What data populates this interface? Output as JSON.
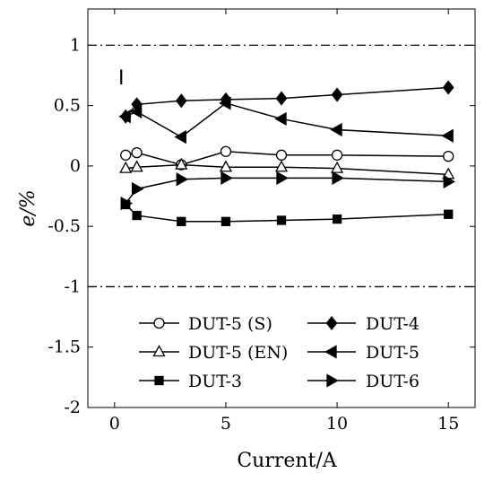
{
  "chart_data": {
    "type": "line",
    "xlabel": "Current/A",
    "ylabel": "e/%",
    "xlim": [
      -1.2,
      16.2
    ],
    "ylim": [
      -2,
      1.3
    ],
    "x_ticks": [
      "0",
      "5",
      "10",
      "15"
    ],
    "x_tick_values": [
      0,
      5,
      10,
      15
    ],
    "y_ticks": [
      "1",
      "0.5",
      "0",
      "-0.5",
      "-1",
      "-1.5",
      "-2"
    ],
    "y_tick_values": [
      1,
      0.5,
      0,
      -0.5,
      -1,
      -1.5,
      -2
    ],
    "grid": false,
    "legend_position": "bottom",
    "limit_lines": [
      1,
      -1
    ],
    "annotation": "I",
    "series": [
      {
        "name": "DUT-5 (S)",
        "marker": "circle-open",
        "x": [
          0.5,
          1,
          3,
          5,
          7.5,
          10,
          15
        ],
        "y": [
          0.09,
          0.11,
          0.01,
          0.12,
          0.09,
          0.09,
          0.08
        ]
      },
      {
        "name": "DUT-4",
        "marker": "diamond-filled",
        "x": [
          0.5,
          1,
          3,
          5,
          7.5,
          10,
          15
        ],
        "y": [
          0.41,
          0.51,
          0.54,
          0.55,
          0.56,
          0.59,
          0.65
        ]
      },
      {
        "name": "DUT-5 (EN)",
        "marker": "triangle-up-open",
        "x": [
          0.5,
          1,
          3,
          5,
          7.5,
          10,
          15
        ],
        "y": [
          -0.02,
          -0.01,
          0.01,
          -0.01,
          -0.01,
          -0.02,
          -0.07
        ]
      },
      {
        "name": "DUT-5",
        "marker": "triangle-left-filled",
        "x": [
          0.5,
          1,
          3,
          5,
          7.5,
          10,
          15
        ],
        "y": [
          0.41,
          0.45,
          0.24,
          0.52,
          0.39,
          0.3,
          0.25
        ]
      },
      {
        "name": "DUT-3",
        "marker": "square-filled",
        "x": [
          0.5,
          1,
          3,
          5,
          7.5,
          10,
          15
        ],
        "y": [
          -0.32,
          -0.41,
          -0.46,
          -0.46,
          -0.45,
          -0.44,
          -0.4
        ]
      },
      {
        "name": "DUT-6",
        "marker": "triangle-right-filled",
        "x": [
          0.5,
          1,
          3,
          5,
          7.5,
          10,
          15
        ],
        "y": [
          -0.31,
          -0.19,
          -0.11,
          -0.1,
          -0.1,
          -0.1,
          -0.13
        ]
      }
    ]
  }
}
